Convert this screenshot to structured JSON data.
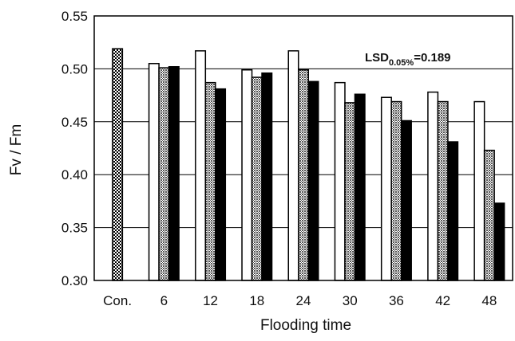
{
  "chart_data": {
    "type": "bar",
    "title": "",
    "xlabel": "Flooding time",
    "ylabel": "Fv / Fm",
    "ylim": [
      0.3,
      0.55
    ],
    "yticks": [
      "0.30",
      "0.35",
      "0.40",
      "0.45",
      "0.50",
      "0.55"
    ],
    "grid": true,
    "legend": "none",
    "control": {
      "category": "Con.",
      "value": 0.519,
      "pattern": "dotted"
    },
    "categories": [
      "6",
      "12",
      "18",
      "24",
      "30",
      "36",
      "42",
      "48"
    ],
    "series": [
      {
        "fill": "white",
        "values": [
          0.505,
          0.517,
          0.499,
          0.517,
          0.487,
          0.473,
          0.478,
          0.469
        ]
      },
      {
        "fill": "crosshatch",
        "values": [
          0.501,
          0.487,
          0.492,
          0.499,
          0.468,
          0.469,
          0.469,
          0.423
        ]
      },
      {
        "fill": "black",
        "values": [
          0.502,
          0.481,
          0.496,
          0.488,
          0.476,
          0.451,
          0.431,
          0.373
        ]
      }
    ],
    "annotation": {
      "main": "LSD",
      "sub": "0.05%",
      "value": "=0.189"
    }
  }
}
